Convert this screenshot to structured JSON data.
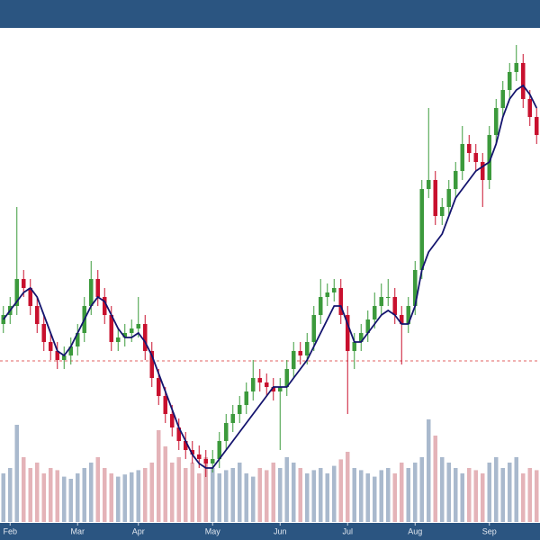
{
  "chart_data": {
    "type": "candlestick",
    "open": [
      22,
      23,
      24,
      27,
      26,
      24,
      22,
      20,
      19,
      18,
      18.5,
      19.5,
      21,
      24,
      27,
      25,
      23,
      20,
      20.5,
      21,
      21.5,
      22,
      19,
      16,
      14,
      12,
      10.5,
      9,
      8,
      7.5,
      7,
      6.5,
      7,
      9,
      11,
      12,
      13,
      14.5,
      16,
      15.5,
      15,
      14.5,
      15,
      17,
      19,
      18.5,
      20,
      23,
      25,
      25.5,
      26,
      23,
      19,
      20,
      21,
      22.5,
      24,
      25,
      25,
      23,
      22,
      24,
      28,
      37,
      38,
      34,
      35,
      37,
      39,
      42,
      41,
      40,
      38,
      43,
      46,
      48,
      50,
      51,
      47,
      45
    ],
    "high": [
      24,
      25,
      35,
      28,
      27,
      25,
      23,
      21,
      20,
      19.5,
      20.5,
      22,
      25,
      29,
      28,
      26,
      24,
      21.5,
      22,
      22.5,
      25,
      23,
      20,
      17,
      15,
      13,
      11.5,
      10,
      9,
      8.5,
      8,
      8,
      10,
      12,
      13,
      14,
      15.5,
      18,
      17,
      16.5,
      16,
      16,
      18,
      20,
      20,
      21,
      24,
      27,
      26.5,
      27,
      27,
      24,
      21,
      22,
      23.5,
      25.5,
      26.5,
      27,
      26,
      24,
      25,
      29,
      38,
      46,
      39,
      36,
      38,
      40,
      44,
      43,
      42,
      41,
      44,
      47,
      49,
      51,
      53,
      52,
      48,
      46
    ],
    "low": [
      21,
      22,
      23,
      25,
      23,
      21,
      19,
      18,
      17,
      17,
      17.5,
      18.5,
      20,
      23,
      24,
      22,
      19,
      19,
      19.5,
      20,
      20.5,
      18,
      15,
      13,
      11,
      9.5,
      8,
      7,
      6.5,
      6,
      5,
      5.5,
      6,
      8,
      10,
      11,
      12,
      13.5,
      14.5,
      14,
      13.5,
      8,
      14,
      16,
      17.5,
      17.5,
      19,
      22,
      24,
      24.5,
      22,
      12,
      17,
      19,
      20,
      21.5,
      23,
      24,
      22,
      17.5,
      21,
      23,
      27,
      36,
      33,
      33,
      34,
      36,
      38,
      40,
      39,
      35,
      37,
      42,
      45,
      47,
      49,
      46,
      44,
      42
    ],
    "close": [
      23,
      24,
      27,
      26,
      24,
      22,
      20,
      19,
      18,
      18.5,
      19.5,
      21,
      24,
      27,
      25,
      23,
      20,
      20.5,
      21,
      21.5,
      22,
      19,
      16,
      14,
      12,
      10.5,
      9,
      8,
      7.5,
      7,
      6.5,
      7,
      9,
      11,
      12,
      13,
      14.5,
      16,
      15.5,
      15,
      14.5,
      15,
      17,
      19,
      18.5,
      20,
      23,
      25,
      25.5,
      26,
      23,
      19,
      20,
      21,
      22.5,
      24,
      25,
      25,
      23,
      22,
      24,
      28,
      37,
      38,
      34,
      35,
      37,
      39,
      42,
      41,
      40,
      38,
      43,
      46,
      48,
      50,
      51,
      47,
      45,
      43
    ],
    "volume": [
      45,
      50,
      90,
      60,
      50,
      55,
      45,
      50,
      48,
      42,
      40,
      45,
      50,
      55,
      60,
      50,
      45,
      42,
      44,
      46,
      48,
      50,
      55,
      85,
      70,
      55,
      60,
      50,
      55,
      45,
      60,
      50,
      45,
      48,
      50,
      55,
      45,
      42,
      50,
      48,
      55,
      50,
      60,
      55,
      50,
      45,
      48,
      50,
      45,
      52,
      58,
      65,
      50,
      48,
      45,
      42,
      48,
      50,
      45,
      55,
      50,
      55,
      60,
      95,
      80,
      60,
      55,
      50,
      45,
      50,
      48,
      45,
      55,
      60,
      50,
      55,
      60,
      45,
      50,
      48
    ],
    "moving_average": [
      22.5,
      23.5,
      24.5,
      25.5,
      26,
      25,
      23,
      21,
      19,
      18.5,
      19.5,
      21,
      22.5,
      24,
      25,
      24.5,
      23,
      21.5,
      20.5,
      20.5,
      21,
      20,
      18.5,
      16.5,
      14.5,
      12.5,
      10.5,
      9,
      7.5,
      6.5,
      6,
      6,
      7,
      8,
      9,
      10,
      11,
      12,
      13,
      14,
      15,
      15,
      15,
      16,
      17,
      18,
      19.5,
      21,
      22.5,
      24,
      24,
      22,
      20,
      20,
      21,
      22,
      23,
      23.5,
      23,
      22,
      22,
      24,
      28,
      30,
      31,
      32,
      34,
      36,
      37,
      38,
      39,
      39.5,
      40,
      42,
      45,
      47,
      48,
      48.5,
      47.5,
      46
    ],
    "reference_line": 17.9,
    "ylim": [
      0,
      55
    ],
    "volume_lim": [
      0,
      100
    ],
    "xticks": [
      {
        "value": 1,
        "label": "Feb"
      },
      {
        "value": 11,
        "label": "Mar"
      },
      {
        "value": 20,
        "label": "Apr"
      },
      {
        "value": 31,
        "label": "May"
      },
      {
        "value": 41,
        "label": "Jun"
      },
      {
        "value": 51,
        "label": "Jul"
      },
      {
        "value": 61,
        "label": "Aug"
      },
      {
        "value": 72,
        "label": "Sep"
      }
    ],
    "up_color": "#3c9a3c",
    "down_color": "#c8102e",
    "ma_color": "#14146e",
    "volume_up_color": "#a9b9cd",
    "volume_down_color": "#e4b3b8",
    "reference_color": "#e06060"
  }
}
